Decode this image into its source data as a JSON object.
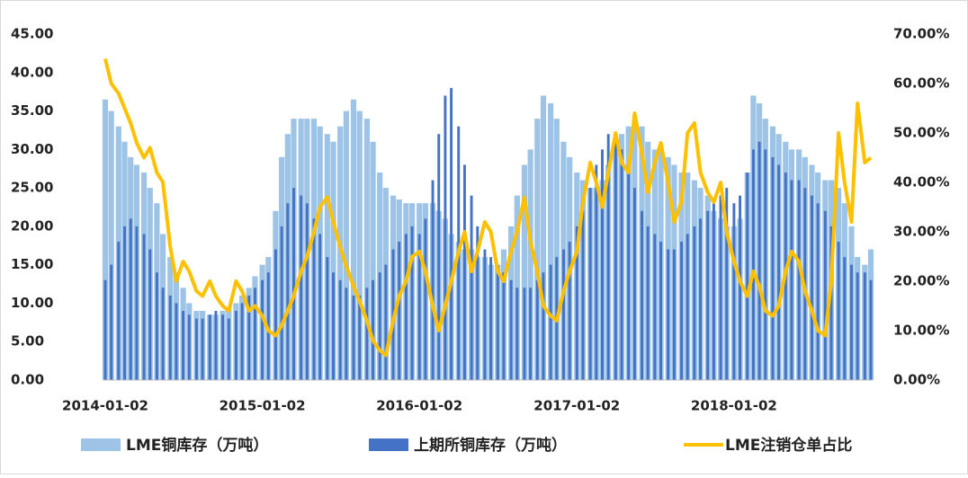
{
  "chart_data": {
    "type": "bar-line",
    "x": [
      "2014-01-02",
      "2014-01-16",
      "2014-02-02",
      "2014-02-16",
      "2014-03-02",
      "2014-03-16",
      "2014-04-02",
      "2014-04-16",
      "2014-05-02",
      "2014-05-16",
      "2014-06-02",
      "2014-06-16",
      "2014-07-02",
      "2014-07-16",
      "2014-08-02",
      "2014-08-16",
      "2014-09-02",
      "2014-09-16",
      "2014-10-02",
      "2014-10-16",
      "2014-11-02",
      "2014-11-16",
      "2014-12-02",
      "2014-12-16",
      "2015-01-02",
      "2015-01-16",
      "2015-02-02",
      "2015-02-16",
      "2015-03-02",
      "2015-03-16",
      "2015-04-02",
      "2015-04-16",
      "2015-05-02",
      "2015-05-16",
      "2015-06-02",
      "2015-06-16",
      "2015-07-02",
      "2015-07-16",
      "2015-08-02",
      "2015-08-16",
      "2015-09-02",
      "2015-09-16",
      "2015-10-02",
      "2015-10-16",
      "2015-11-02",
      "2015-11-16",
      "2015-12-02",
      "2015-12-16",
      "2016-01-02",
      "2016-01-16",
      "2016-02-02",
      "2016-02-16",
      "2016-03-02",
      "2016-03-16",
      "2016-04-02",
      "2016-04-16",
      "2016-05-02",
      "2016-05-16",
      "2016-06-02",
      "2016-06-16",
      "2016-07-02",
      "2016-07-16",
      "2016-08-02",
      "2016-08-16",
      "2016-09-02",
      "2016-09-16",
      "2016-10-02",
      "2016-10-16",
      "2016-11-02",
      "2016-11-16",
      "2016-12-02",
      "2016-12-16",
      "2017-01-02",
      "2017-01-16",
      "2017-02-02",
      "2017-02-16",
      "2017-03-02",
      "2017-03-16",
      "2017-04-02",
      "2017-04-16",
      "2017-05-02",
      "2017-05-16",
      "2017-06-02",
      "2017-06-16",
      "2017-07-02",
      "2017-07-16",
      "2017-08-02",
      "2017-08-16",
      "2017-09-02",
      "2017-09-16",
      "2017-10-02",
      "2017-10-16",
      "2017-11-02",
      "2017-11-16",
      "2017-12-02",
      "2017-12-16",
      "2018-01-02",
      "2018-01-16",
      "2018-02-02",
      "2018-02-16",
      "2018-03-02",
      "2018-03-16",
      "2018-04-02",
      "2018-04-16",
      "2018-05-02",
      "2018-05-16",
      "2018-06-02",
      "2018-06-16",
      "2018-07-02",
      "2018-07-16",
      "2018-08-02",
      "2018-08-16",
      "2018-09-02",
      "2018-09-16",
      "2018-10-02",
      "2018-10-16",
      "2018-11-02",
      "2018-11-16"
    ],
    "series": [
      {
        "name": "LME铜库存（万吨）",
        "kind": "bar",
        "color": "#9dc3e6",
        "values": [
          36.5,
          35,
          33,
          31,
          29,
          28,
          27,
          25,
          23,
          19,
          16,
          14,
          12,
          10,
          9,
          9,
          8.5,
          8.5,
          9,
          9.5,
          10,
          11,
          12,
          13.5,
          15,
          16,
          22,
          29,
          32,
          34,
          34,
          34,
          34,
          33,
          32,
          31,
          33,
          35,
          36.5,
          35,
          34,
          31,
          27,
          25,
          24,
          23.5,
          23,
          23,
          23,
          23,
          23,
          22,
          21,
          19,
          18,
          17,
          17,
          16,
          16,
          15,
          15,
          17,
          20,
          24,
          28,
          30,
          34,
          37,
          36,
          34,
          31,
          29,
          27,
          26,
          25,
          25,
          26,
          28,
          30,
          32,
          33,
          33,
          33,
          31,
          30,
          30,
          29,
          28,
          27,
          27,
          26,
          25,
          24,
          22,
          21,
          20,
          20,
          21,
          27,
          37,
          36,
          34,
          33,
          32,
          31,
          30,
          30,
          29,
          28,
          27,
          26,
          26,
          25,
          23,
          20,
          16,
          15,
          17
        ]
      },
      {
        "name": "上期所铜库存（万吨）",
        "kind": "bar",
        "color": "#4472c4",
        "values": [
          13,
          15,
          18,
          20,
          21,
          20,
          19,
          17,
          14,
          12,
          11,
          10,
          9,
          8.5,
          8,
          8,
          8.5,
          9,
          8.5,
          8,
          9,
          10,
          11,
          12,
          13,
          14,
          17,
          20,
          23,
          25,
          24,
          23,
          21,
          19,
          16,
          14,
          13,
          12,
          11,
          11,
          12,
          13,
          14,
          15,
          17,
          18,
          19,
          20,
          19,
          21,
          26,
          32,
          37,
          38,
          33,
          28,
          24,
          20,
          17,
          16,
          15,
          14,
          13,
          12,
          12,
          12,
          13,
          14,
          15,
          16,
          17,
          18,
          20,
          22,
          25,
          28,
          30,
          32,
          31,
          30,
          28,
          25,
          22,
          20,
          19,
          18,
          17,
          17,
          18,
          19,
          20,
          21,
          22,
          23,
          24,
          25,
          23,
          24,
          27,
          30,
          31,
          30,
          29,
          28,
          27,
          26,
          26,
          25,
          24,
          23,
          22,
          20,
          18,
          16,
          15,
          14,
          14,
          13
        ]
      },
      {
        "name": "LME注销仓单占比",
        "kind": "line",
        "axis": "y2",
        "color": "#ffc000",
        "values": [
          65,
          60,
          58,
          55,
          52,
          48,
          45,
          47,
          42,
          40,
          27,
          20,
          24,
          22,
          18,
          17,
          20,
          17,
          15,
          14,
          20,
          18,
          14,
          15,
          13,
          10,
          9,
          11,
          14,
          17,
          22,
          25,
          30,
          35,
          37,
          32,
          27,
          23,
          19,
          16,
          12,
          8,
          6,
          5,
          12,
          17,
          20,
          25,
          26,
          22,
          15,
          10,
          15,
          20,
          26,
          30,
          22,
          26,
          32,
          30,
          22,
          20,
          26,
          30,
          37,
          28,
          22,
          15,
          13,
          12,
          18,
          22,
          26,
          36,
          44,
          40,
          35,
          42,
          50,
          44,
          42,
          54,
          46,
          38,
          44,
          48,
          40,
          32,
          36,
          50,
          52,
          42,
          38,
          36,
          40,
          30,
          24,
          20,
          17,
          22,
          19,
          14,
          13,
          15,
          22,
          26,
          24,
          18,
          14,
          10,
          9,
          20,
          50,
          40,
          32,
          56,
          44,
          45
        ]
      }
    ],
    "xlim": [
      "2014-01-02",
      "2018-11-16"
    ],
    "xticks": [
      "2014-01-02",
      "2015-01-02",
      "2016-01-02",
      "2017-01-02",
      "2018-01-02"
    ],
    "ylim": [
      0,
      45
    ],
    "yticks": [
      {
        "value": 0,
        "label": "0.00"
      },
      {
        "value": 5,
        "label": "5.00"
      },
      {
        "value": 10,
        "label": "10.00"
      },
      {
        "value": 15,
        "label": "15.00"
      },
      {
        "value": 20,
        "label": "20.00"
      },
      {
        "value": 25,
        "label": "25.00"
      },
      {
        "value": 30,
        "label": "30.00"
      },
      {
        "value": 35,
        "label": "35.00"
      },
      {
        "value": 40,
        "label": "40.00"
      },
      {
        "value": 45,
        "label": "45.00"
      }
    ],
    "y2lim": [
      0,
      70
    ],
    "y2ticks": [
      {
        "value": 0,
        "label": "0.00%"
      },
      {
        "value": 10,
        "label": "10.00%"
      },
      {
        "value": 20,
        "label": "20.00%"
      },
      {
        "value": 30,
        "label": "30.00%"
      },
      {
        "value": 40,
        "label": "40.00%"
      },
      {
        "value": 50,
        "label": "50.00%"
      },
      {
        "value": 60,
        "label": "60.00%"
      },
      {
        "value": 70,
        "label": "70.00%"
      }
    ],
    "legend": "bottom"
  }
}
